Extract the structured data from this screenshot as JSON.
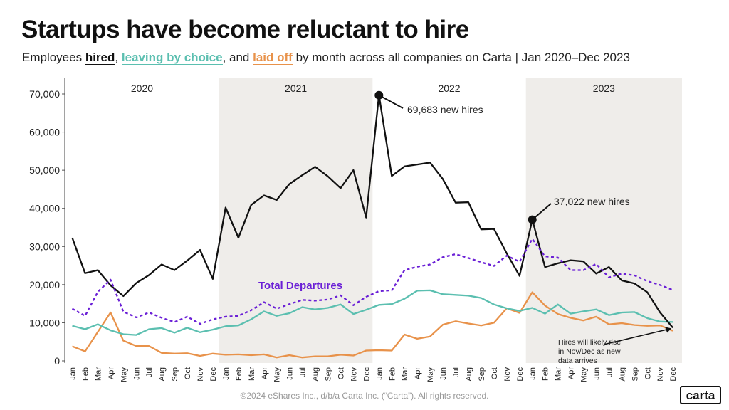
{
  "header": {
    "title": "Startups have become reluctant to hire",
    "subtitle_prefix": "Employees ",
    "hired_label": "hired",
    "sep1": ", ",
    "leaving_label": "leaving by choice",
    "sep2": ", and ",
    "laidoff_label": "laid off",
    "subtitle_suffix": " by month across all companies on Carta | Jan 2020–Dec 2023"
  },
  "footer": {
    "copyright": "©2024 eShares Inc., d/b/a Carta Inc. (“Carta”). All rights reserved.",
    "logo": "carta"
  },
  "colors": {
    "hired": "#111111",
    "leaving": "#5bbfb0",
    "laidoff": "#e8924a",
    "total": "#6a1fd6",
    "shade": "#efedea"
  },
  "chart_data": {
    "type": "line",
    "x": [
      "Jan",
      "Feb",
      "Mar",
      "Apr",
      "May",
      "Jun",
      "Jul",
      "Aug",
      "Sep",
      "Oct",
      "Nov",
      "Dec",
      "Jan",
      "Feb",
      "Mar",
      "Apr",
      "May",
      "Jun",
      "Jul",
      "Aug",
      "Sep",
      "Oct",
      "Nov",
      "Dec",
      "Jan",
      "Feb",
      "Mar",
      "Apr",
      "May",
      "Jun",
      "Jul",
      "Aug",
      "Sep",
      "Oct",
      "Nov",
      "Dec",
      "Jan",
      "Feb",
      "Mar",
      "Apr",
      "May",
      "Jun",
      "Jul",
      "Aug",
      "Sep",
      "Oct",
      "Nov",
      "Dec"
    ],
    "years": [
      "2020",
      "2021",
      "2022",
      "2023"
    ],
    "ylim": [
      0,
      70000
    ],
    "yticks": [
      0,
      10000,
      20000,
      30000,
      40000,
      50000,
      60000,
      70000
    ],
    "ytick_labels": [
      "0",
      "10,000",
      "20,000",
      "30,000",
      "40,000",
      "50,000",
      "60,000",
      "70,000"
    ],
    "series": [
      {
        "name": "hired",
        "style": "solid",
        "values": [
          32300,
          23000,
          23800,
          19800,
          17000,
          20400,
          22500,
          25300,
          23800,
          26300,
          29100,
          21500,
          40200,
          32300,
          40900,
          43400,
          42200,
          46400,
          48700,
          50900,
          48400,
          45300,
          50000,
          37600,
          69683,
          48500,
          51000,
          51500,
          52000,
          47700,
          41500,
          41600,
          34500,
          34600,
          28200,
          22300,
          37022,
          24600,
          25600,
          26400,
          26100,
          22900,
          24600,
          21100,
          20300,
          18000,
          12700,
          8700
        ]
      },
      {
        "name": "leaving by choice",
        "style": "solid",
        "values": [
          9200,
          8300,
          9600,
          8000,
          7000,
          6800,
          8300,
          8600,
          7400,
          8700,
          7500,
          8200,
          9100,
          9300,
          10900,
          13000,
          11800,
          12500,
          14100,
          13500,
          13900,
          14800,
          12300,
          13400,
          14700,
          14900,
          16300,
          18400,
          18500,
          17500,
          17300,
          17100,
          16500,
          14800,
          13800,
          13100,
          13900,
          12400,
          14800,
          12400,
          13000,
          13500,
          12000,
          12700,
          12800,
          11200,
          10300,
          10200
        ]
      },
      {
        "name": "laid off",
        "style": "solid",
        "values": [
          3800,
          2500,
          7600,
          12700,
          5300,
          3900,
          3900,
          2100,
          1900,
          2000,
          1300,
          1900,
          1600,
          1700,
          1500,
          1700,
          900,
          1500,
          900,
          1200,
          1200,
          1600,
          1400,
          2700,
          2800,
          2700,
          6900,
          5800,
          6400,
          9500,
          10400,
          9800,
          9300,
          10000,
          13800,
          12600,
          18000,
          14500,
          12300,
          11300,
          10600,
          11600,
          9600,
          9900,
          9400,
          9200,
          9300,
          7900
        ]
      },
      {
        "name": "Total Departures",
        "style": "dashed",
        "values": [
          13700,
          11800,
          18100,
          21300,
          12900,
          11400,
          12700,
          11300,
          10200,
          11600,
          9700,
          10900,
          11600,
          11800,
          13300,
          15400,
          13700,
          14900,
          16000,
          15800,
          16100,
          17200,
          14600,
          16800,
          18300,
          18500,
          23800,
          24700,
          25300,
          27200,
          28000,
          27000,
          25900,
          24900,
          27600,
          26000,
          32000,
          27400,
          27100,
          23800,
          23800,
          25400,
          21900,
          22900,
          22400,
          20900,
          19900,
          18600
        ]
      }
    ],
    "annotations": [
      {
        "text": "69,683 new hires",
        "series": "hired",
        "index": 24
      },
      {
        "text": "37,022 new hires",
        "series": "hired",
        "index": 36
      },
      {
        "text_lines": [
          "Hires will likely rise",
          "in Nov/Dec as new",
          "data arrives"
        ],
        "series": "hired",
        "index": 47
      }
    ]
  }
}
